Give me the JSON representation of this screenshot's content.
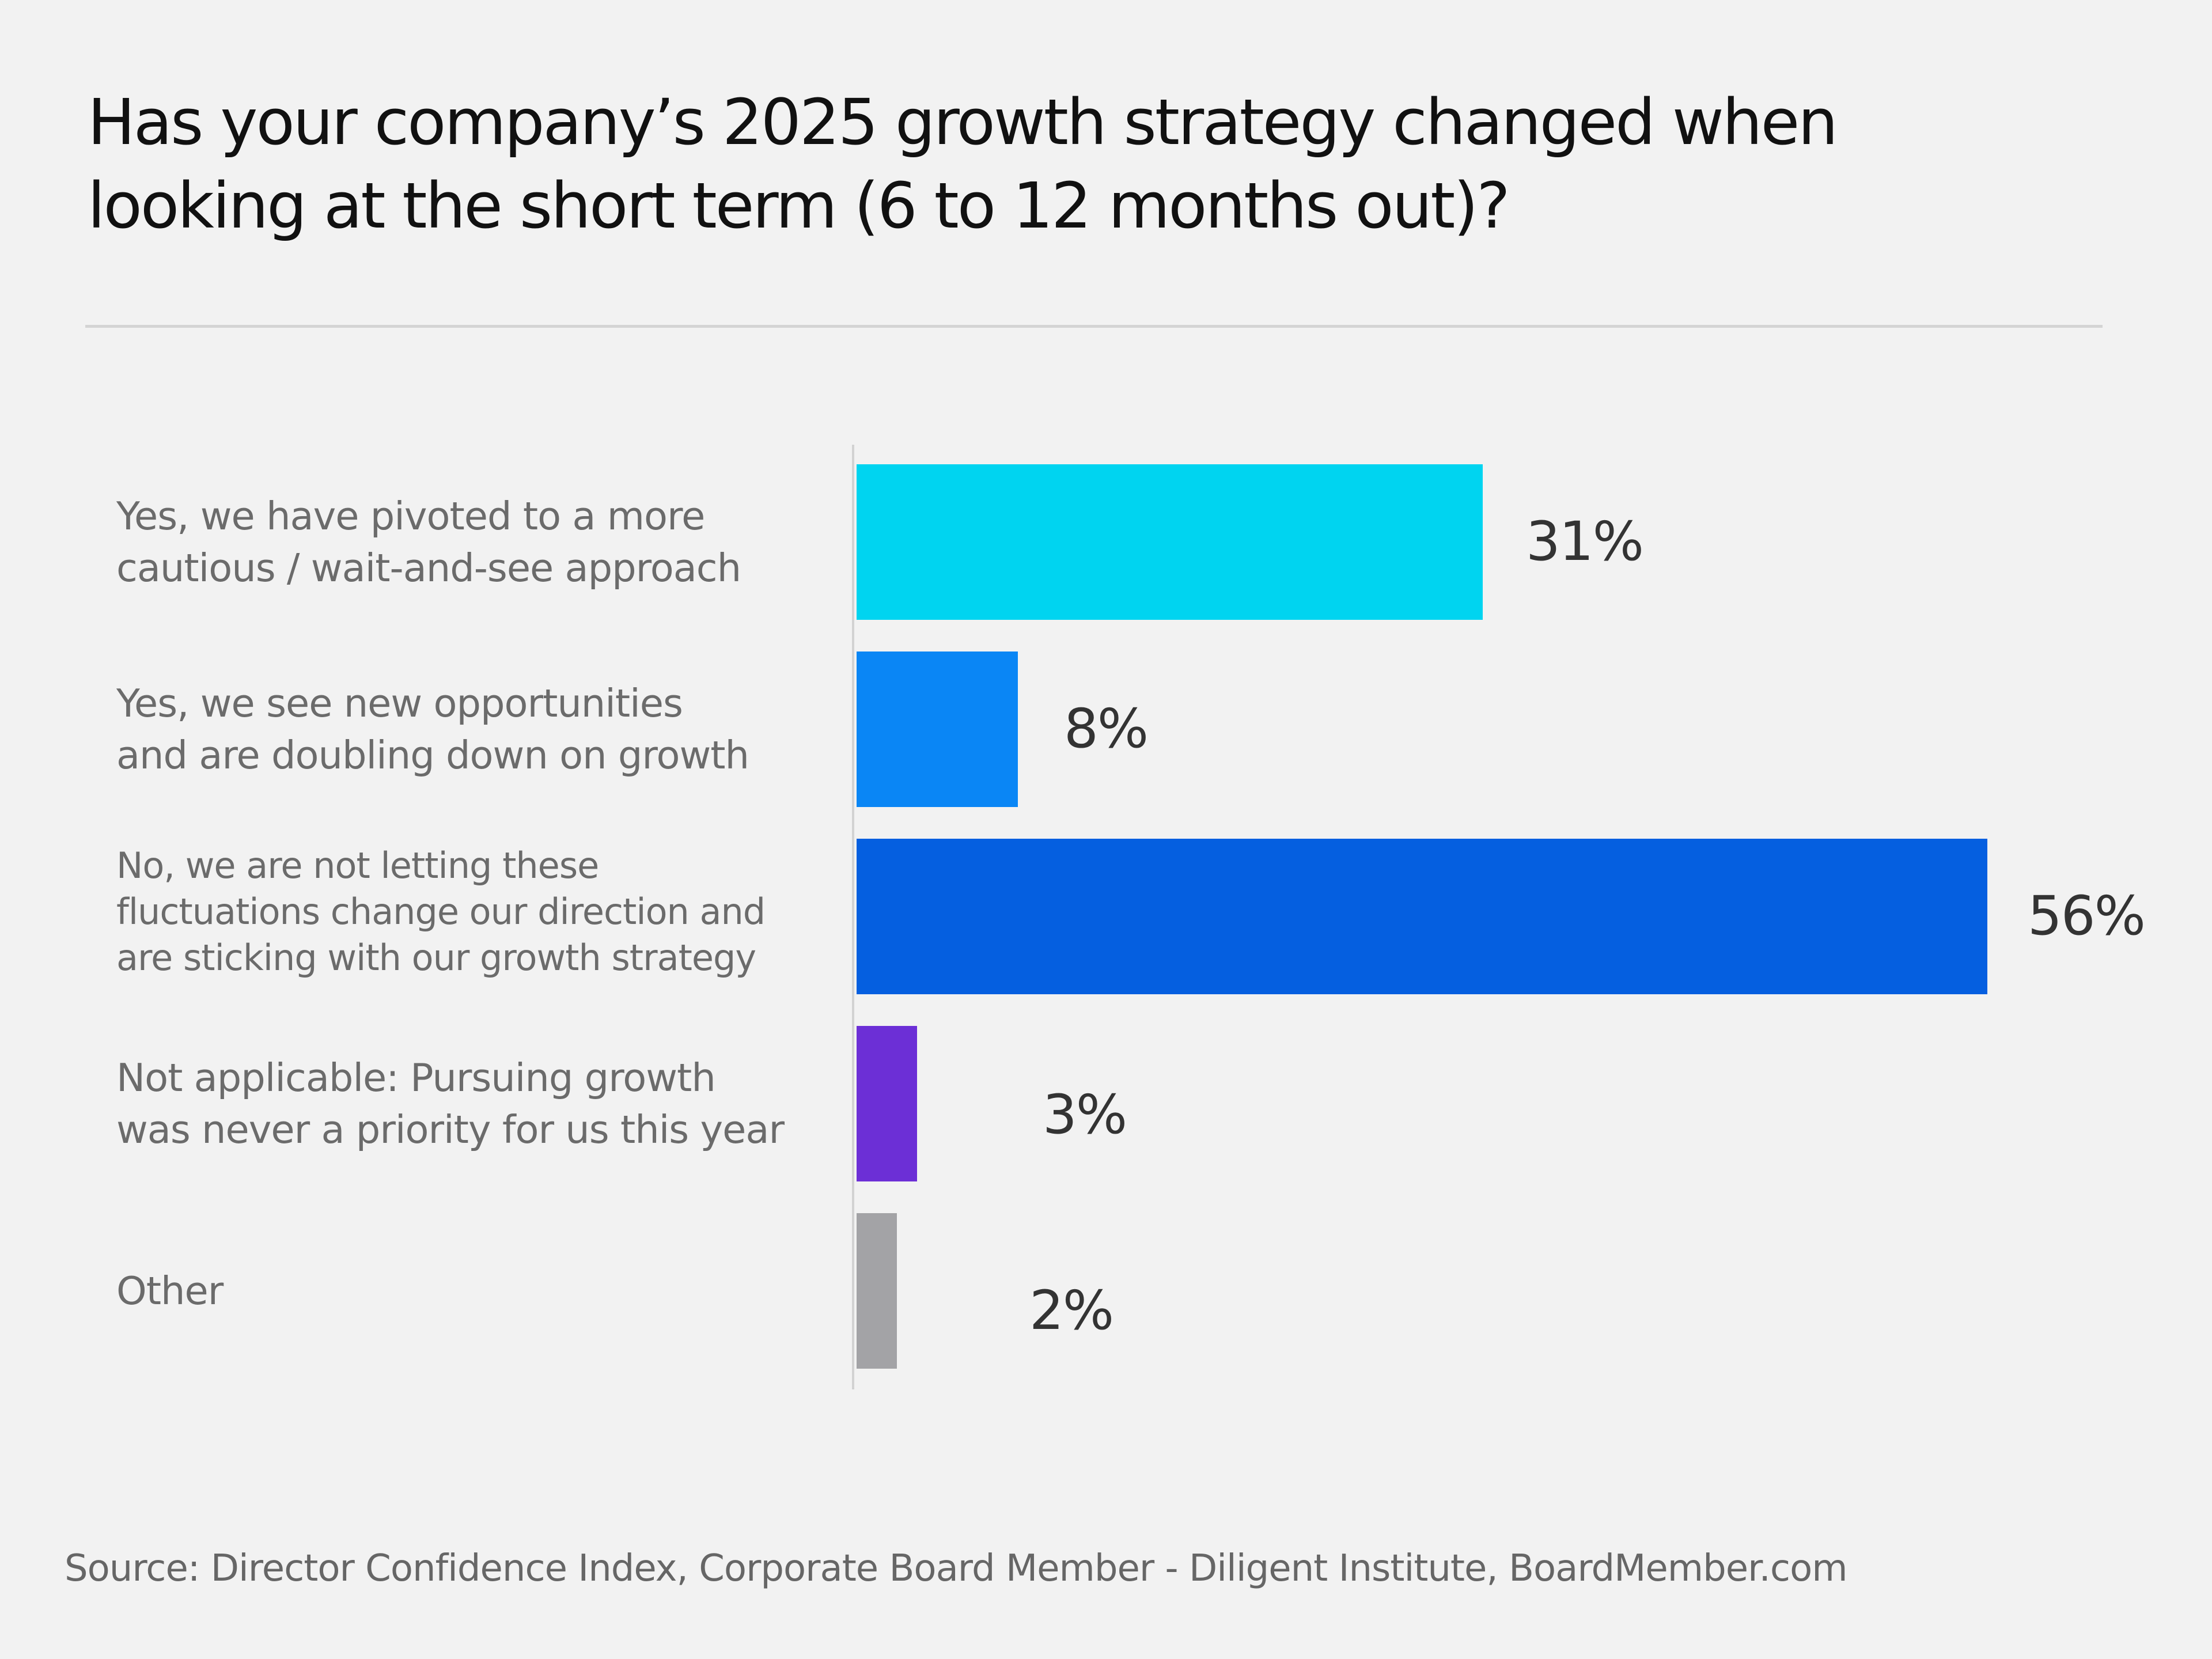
{
  "chart_data": {
    "type": "bar",
    "orientation": "horizontal",
    "title": "Has your company’s 2025 growth strategy changed when\nlooking at the short term (6 to 12 months out)?",
    "categories": [
      "Yes, we have pivoted to a more\ncautious / wait-and-see approach",
      "Yes, we see new opportunities\nand are doubling down on growth",
      "No, we are not letting these\nfluctuations change our direction and\nare sticking with our growth strategy",
      "Not applicable: Pursuing growth\nwas never a priority for us this year",
      "Other"
    ],
    "values": [
      31,
      8,
      56,
      3,
      2
    ],
    "data_labels": [
      "31%",
      "8%",
      "56%",
      "3%",
      "2%"
    ],
    "colors": [
      "#00d4f0",
      "#0a86f5",
      "#055fe0",
      "#6c2fd6",
      "#a3a3a6"
    ],
    "xlim": [
      0,
      56
    ],
    "grid": false,
    "legend": "none",
    "source": "Source: Director Confidence Index, Corporate Board Member - Diligent Institute, BoardMember.com"
  }
}
